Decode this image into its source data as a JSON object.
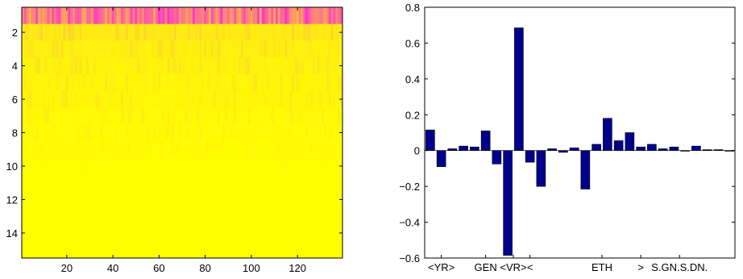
{
  "chart_data": [
    {
      "type": "heatmap",
      "title": "",
      "xlabel": "",
      "ylabel": "",
      "xlim": [
        0.5,
        139.5
      ],
      "ylim": [
        0.5,
        15.5
      ],
      "y_reversed": true,
      "colormap": "spring",
      "color_low": "#ff00ff",
      "color_high": "#ffff00",
      "grid": false,
      "x_ticks": [
        20,
        40,
        60,
        80,
        100,
        120
      ],
      "y_ticks": [
        2,
        4,
        6,
        8,
        10,
        12,
        14
      ],
      "rows": 15,
      "cols": 139,
      "description_of_values": "row 1 mostly magenta/pink (low), rows 2-15 predominantly yellow (high) with faint orange streaks in rows 2-8",
      "row_mean_level": [
        0.45,
        0.93,
        0.95,
        0.96,
        0.97,
        0.97,
        0.98,
        0.985,
        0.99,
        0.995,
        1.0,
        1.0,
        1.0,
        1.0,
        1.0
      ]
    },
    {
      "type": "bar",
      "title": "",
      "xlabel": "",
      "ylabel": "",
      "ylim": [
        -0.6,
        0.8
      ],
      "y_ticks": [
        -0.6,
        -0.4,
        -0.2,
        0,
        0.2,
        0.4,
        0.6,
        0.8
      ],
      "y_tick_labels": [
        "−0.6",
        "−0.4",
        "−0.2",
        "0",
        "0.2",
        "0.4",
        "0.6",
        "0.8"
      ],
      "bar_color": "#00008b",
      "grid": false,
      "category_labels": [
        "<YR>",
        "GEN",
        "<VR>",
        "<",
        "ETH",
        ">",
        "S.GN.S.DN."
      ],
      "category_label_positions": [
        2,
        6,
        8.5,
        10,
        16.5,
        20,
        23.5
      ],
      "x": [
        1,
        2,
        3,
        4,
        5,
        6,
        7,
        8,
        9,
        10,
        11,
        12,
        13,
        14,
        15,
        16,
        17,
        18,
        19,
        20,
        21,
        22,
        23,
        24,
        25,
        26,
        27,
        28
      ],
      "values": [
        0.115,
        -0.09,
        0.01,
        0.025,
        0.02,
        0.11,
        -0.075,
        -0.585,
        0.685,
        -0.065,
        -0.2,
        0.01,
        -0.01,
        0.015,
        -0.215,
        0.035,
        0.18,
        0.055,
        0.1,
        0.02,
        0.035,
        0.01,
        0.02,
        0.0,
        0.025,
        0.005,
        0.005,
        0.0
      ]
    }
  ]
}
